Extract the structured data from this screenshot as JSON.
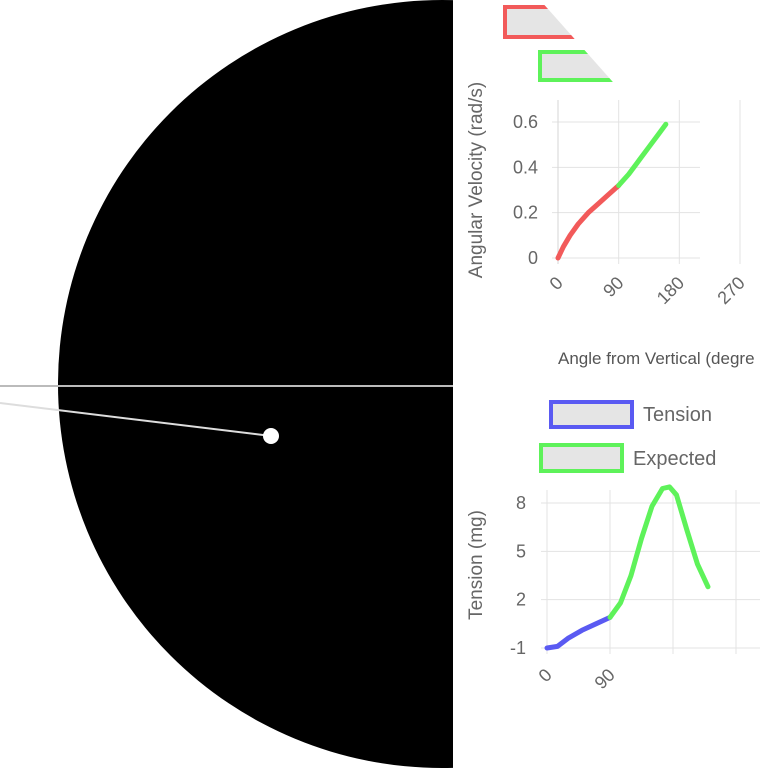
{
  "simulation": {
    "background_color": "#000000",
    "rod_color": "#dddddd",
    "bob_color": "#ffffff",
    "horizon_color": "#bbbbbb"
  },
  "chart_data": [
    {
      "type": "line",
      "xlabel": "Angle from Vertical (degre",
      "ylabel": "Angular Velocity (rad/s)",
      "x_ticks": [
        "0",
        "90",
        "180",
        "270"
      ],
      "y_ticks": [
        "0",
        "0.2",
        "0.4",
        "0.6"
      ],
      "xlim": [
        0,
        270
      ],
      "ylim": [
        0,
        0.6
      ],
      "series": [
        {
          "color": "#f25a5a",
          "x": [
            0,
            8,
            18,
            30,
            45,
            60,
            75,
            90
          ],
          "y": [
            0.0,
            0.05,
            0.1,
            0.15,
            0.2,
            0.24,
            0.28,
            0.32
          ]
        },
        {
          "color": "#5ef25a",
          "x": [
            90,
            105,
            120,
            135,
            150,
            160
          ],
          "y": [
            0.32,
            0.37,
            0.43,
            0.49,
            0.55,
            0.59
          ]
        }
      ],
      "legend": [
        {
          "color": "#f25a5a"
        },
        {
          "color": "#5ef25a"
        }
      ]
    },
    {
      "type": "line",
      "ylabel": "Tension (mg)",
      "x_ticks": [
        "0",
        "90"
      ],
      "y_ticks": [
        "-1",
        "2",
        "5",
        "8"
      ],
      "ylim": [
        -1,
        8
      ],
      "series": [
        {
          "name": "Tension",
          "color": "#5a5af2",
          "x": [
            0,
            15,
            30,
            50,
            70,
            90
          ],
          "y": [
            -1.0,
            -0.9,
            -0.4,
            0.1,
            0.5,
            0.9
          ]
        },
        {
          "name": "Expected",
          "color": "#5ef25a",
          "x": [
            90,
            105,
            120,
            135,
            150,
            165,
            175,
            185,
            200,
            215,
            230
          ],
          "y": [
            0.9,
            1.8,
            3.5,
            5.8,
            7.8,
            8.9,
            9.0,
            8.5,
            6.3,
            4.2,
            2.8
          ]
        }
      ],
      "legend": [
        {
          "label": "Tension",
          "color": "#5a5af2"
        },
        {
          "label": "Expected",
          "color": "#5ef25a"
        }
      ]
    }
  ]
}
